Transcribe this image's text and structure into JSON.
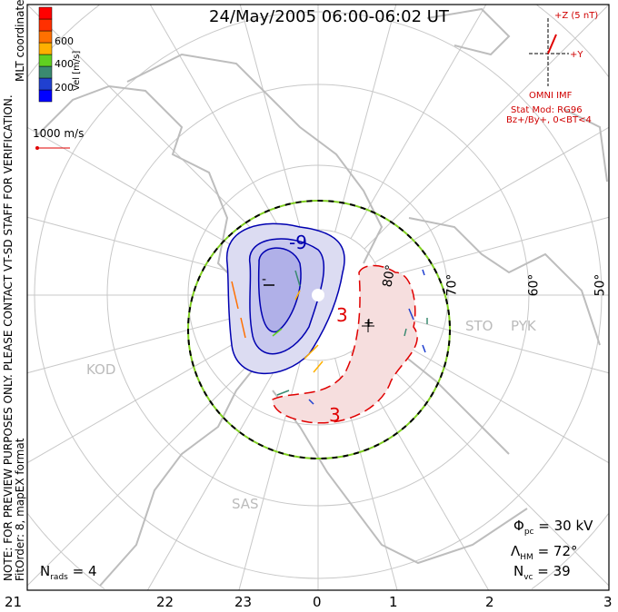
{
  "title": "24/May/2005 06:00-06:02 UT",
  "coordinates_label": "MLT coordinates",
  "note_line1": "NOTE: FOR PREVIEW PURPOSES ONLY. PLEASE CONTACT VT-SD STAFF FOR VERIFICATION.",
  "note_line2": "FitOrder: 8, mapEX format",
  "colorbar": {
    "label": "Vel [m/s]",
    "ticks": [
      "600",
      "400",
      "200"
    ],
    "colors": [
      "#0000ff",
      "#2040d0",
      "#3a8a70",
      "#60d020",
      "#ffb000",
      "#ff7000",
      "#ff3000",
      "#ff0000"
    ]
  },
  "scale_vector": "1000 m/s",
  "imf": {
    "z_label": "+Z (5 nT)",
    "y_label": "+Y",
    "source": "OMNI IMF",
    "model": "Stat Mod: RG96",
    "condition": "Bz+/By+, 0<BT<4"
  },
  "latitude_labels": [
    "80°",
    "70°",
    "60°",
    "50°"
  ],
  "stations": [
    "KOD",
    "STO",
    "PYK",
    "SAS"
  ],
  "contour_labels": [
    "-9",
    "3",
    "3",
    "-",
    "+"
  ],
  "stats": {
    "phi_pc": {
      "symbol": "Φ",
      "sub": "pc",
      "value": "= 30 kV"
    },
    "lambda_hm": {
      "symbol": "Λ",
      "sub": "HM",
      "value": "= 72°"
    },
    "n_vc": {
      "symbol": "N",
      "sub": "vc",
      "value": "= 39"
    },
    "n_rads": {
      "symbol": "N",
      "sub": "rads",
      "value": "= 4"
    }
  },
  "mlt_labels": [
    "21",
    "22",
    "23",
    "0",
    "1",
    "2",
    "3"
  ]
}
